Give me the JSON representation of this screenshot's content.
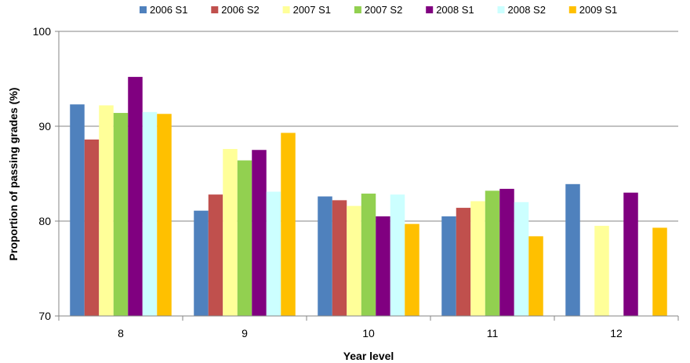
{
  "chart_data": {
    "type": "bar",
    "title": "",
    "xlabel": "Year level",
    "ylabel": "Proportion of passing grades (%)",
    "ylim": [
      70,
      100
    ],
    "yticks": [
      70,
      80,
      90,
      100
    ],
    "grid": true,
    "legend_position": "top",
    "categories": [
      "8",
      "9",
      "10",
      "11",
      "12"
    ],
    "series": [
      {
        "name": "2006 S1",
        "color": "#4f81bd",
        "values": [
          92.3,
          81.1,
          82.6,
          80.5,
          83.9
        ]
      },
      {
        "name": "2006 S2",
        "color": "#c0504d",
        "values": [
          88.6,
          82.8,
          82.2,
          81.4,
          null
        ]
      },
      {
        "name": "2007 S1",
        "color": "#ffff99",
        "values": [
          92.2,
          87.6,
          81.6,
          82.1,
          79.5
        ]
      },
      {
        "name": "2007 S2",
        "color": "#92d050",
        "values": [
          91.4,
          86.4,
          82.9,
          83.2,
          null
        ]
      },
      {
        "name": "2008 S1",
        "color": "#800080",
        "values": [
          95.2,
          87.5,
          80.5,
          83.4,
          83.0
        ]
      },
      {
        "name": "2008 S2",
        "color": "#ccffff",
        "values": [
          91.5,
          83.1,
          82.8,
          82.0,
          null
        ]
      },
      {
        "name": "2009 S1",
        "color": "#ffc000",
        "values": [
          91.3,
          89.3,
          79.7,
          78.4,
          79.3
        ]
      }
    ]
  }
}
